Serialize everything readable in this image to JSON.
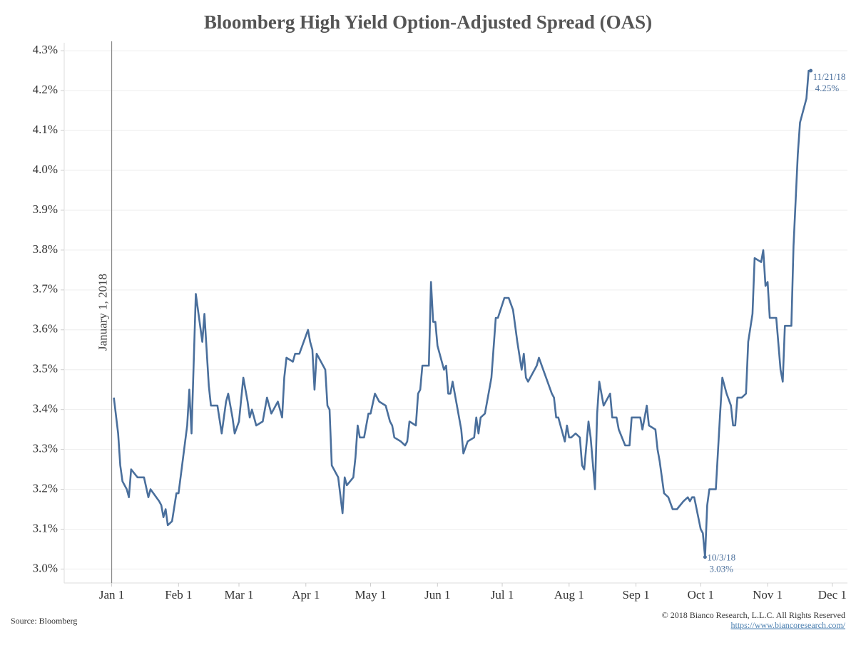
{
  "chart_data": {
    "type": "line",
    "title": "Bloomberg High Yield Option-Adjusted Spread (OAS)",
    "color": "#4a6f9c",
    "x": [
      "2018-01-02",
      "2018-01-04",
      "2018-01-05",
      "2018-01-06",
      "2018-01-08",
      "2018-01-09",
      "2018-01-10",
      "2018-01-13",
      "2018-01-16",
      "2018-01-18",
      "2018-01-19",
      "2018-01-23",
      "2018-01-24",
      "2018-01-25",
      "2018-01-26",
      "2018-01-27",
      "2018-01-29",
      "2018-01-31",
      "2018-02-01",
      "2018-02-05",
      "2018-02-06",
      "2018-02-07",
      "2018-02-09",
      "2018-02-12",
      "2018-02-13",
      "2018-02-15",
      "2018-02-16",
      "2018-02-19",
      "2018-02-21",
      "2018-02-23",
      "2018-02-24",
      "2018-02-26",
      "2018-02-27",
      "2018-03-01",
      "2018-03-03",
      "2018-03-05",
      "2018-03-06",
      "2018-03-07",
      "2018-03-09",
      "2018-03-12",
      "2018-03-14",
      "2018-03-16",
      "2018-03-19",
      "2018-03-21",
      "2018-03-22",
      "2018-03-23",
      "2018-03-26",
      "2018-03-27",
      "2018-03-29",
      "2018-04-02",
      "2018-04-03",
      "2018-04-04",
      "2018-04-05",
      "2018-04-06",
      "2018-04-10",
      "2018-04-11",
      "2018-04-12",
      "2018-04-13",
      "2018-04-16",
      "2018-04-18",
      "2018-04-19",
      "2018-04-20",
      "2018-04-23",
      "2018-04-24",
      "2018-04-25",
      "2018-04-26",
      "2018-04-28",
      "2018-04-30",
      "2018-05-01",
      "2018-05-03",
      "2018-05-05",
      "2018-05-08",
      "2018-05-10",
      "2018-05-11",
      "2018-05-12",
      "2018-05-15",
      "2018-05-17",
      "2018-05-18",
      "2018-05-19",
      "2018-05-22",
      "2018-05-23",
      "2018-05-24",
      "2018-05-25",
      "2018-05-28",
      "2018-05-29",
      "2018-05-30",
      "2018-05-31",
      "2018-06-01",
      "2018-06-04",
      "2018-06-05",
      "2018-06-06",
      "2018-06-07",
      "2018-06-08",
      "2018-06-12",
      "2018-06-13",
      "2018-06-15",
      "2018-06-18",
      "2018-06-19",
      "2018-06-20",
      "2018-06-21",
      "2018-06-23",
      "2018-06-25",
      "2018-06-26",
      "2018-06-28",
      "2018-06-29",
      "2018-07-02",
      "2018-07-04",
      "2018-07-06",
      "2018-07-08",
      "2018-07-10",
      "2018-07-11",
      "2018-07-12",
      "2018-07-13",
      "2018-07-17",
      "2018-07-18",
      "2018-07-20",
      "2018-07-24",
      "2018-07-25",
      "2018-07-26",
      "2018-07-27",
      "2018-07-30",
      "2018-07-31",
      "2018-08-01",
      "2018-08-02",
      "2018-08-04",
      "2018-08-06",
      "2018-08-07",
      "2018-08-08",
      "2018-08-10",
      "2018-08-11",
      "2018-08-13",
      "2018-08-14",
      "2018-08-15",
      "2018-08-17",
      "2018-08-20",
      "2018-08-21",
      "2018-08-23",
      "2018-08-24",
      "2018-08-27",
      "2018-08-29",
      "2018-08-30",
      "2018-09-03",
      "2018-09-04",
      "2018-09-06",
      "2018-09-07",
      "2018-09-10",
      "2018-09-11",
      "2018-09-12",
      "2018-09-14",
      "2018-09-16",
      "2018-09-18",
      "2018-09-20",
      "2018-09-23",
      "2018-09-25",
      "2018-09-26",
      "2018-09-27",
      "2018-09-28",
      "2018-10-01",
      "2018-10-02",
      "2018-10-03",
      "2018-10-04",
      "2018-10-05",
      "2018-10-08",
      "2018-10-10",
      "2018-10-11",
      "2018-10-13",
      "2018-10-15",
      "2018-10-16",
      "2018-10-17",
      "2018-10-18",
      "2018-10-20",
      "2018-10-22",
      "2018-10-23",
      "2018-10-25",
      "2018-10-26",
      "2018-10-29",
      "2018-10-30",
      "2018-10-31",
      "2018-11-01",
      "2018-11-02",
      "2018-11-05",
      "2018-11-07",
      "2018-11-08",
      "2018-11-09",
      "2018-11-12",
      "2018-11-13",
      "2018-11-15",
      "2018-11-16",
      "2018-11-19",
      "2018-11-20",
      "2018-11-21"
    ],
    "values": [
      3.43,
      3.34,
      3.26,
      3.22,
      3.2,
      3.18,
      3.25,
      3.23,
      3.23,
      3.18,
      3.2,
      3.17,
      3.16,
      3.13,
      3.15,
      3.11,
      3.12,
      3.19,
      3.19,
      3.36,
      3.45,
      3.34,
      3.69,
      3.57,
      3.64,
      3.46,
      3.41,
      3.41,
      3.34,
      3.42,
      3.44,
      3.38,
      3.34,
      3.37,
      3.48,
      3.42,
      3.38,
      3.4,
      3.36,
      3.37,
      3.43,
      3.39,
      3.42,
      3.38,
      3.48,
      3.53,
      3.52,
      3.54,
      3.54,
      3.6,
      3.57,
      3.55,
      3.45,
      3.54,
      3.5,
      3.41,
      3.4,
      3.26,
      3.23,
      3.14,
      3.23,
      3.21,
      3.23,
      3.28,
      3.36,
      3.33,
      3.33,
      3.39,
      3.39,
      3.44,
      3.42,
      3.41,
      3.37,
      3.36,
      3.33,
      3.32,
      3.31,
      3.32,
      3.37,
      3.36,
      3.44,
      3.45,
      3.51,
      3.51,
      3.72,
      3.62,
      3.62,
      3.56,
      3.5,
      3.51,
      3.44,
      3.44,
      3.47,
      3.35,
      3.29,
      3.32,
      3.33,
      3.38,
      3.34,
      3.38,
      3.39,
      3.45,
      3.48,
      3.63,
      3.63,
      3.68,
      3.68,
      3.65,
      3.57,
      3.5,
      3.54,
      3.48,
      3.47,
      3.51,
      3.53,
      3.5,
      3.44,
      3.43,
      3.38,
      3.38,
      3.32,
      3.36,
      3.33,
      3.33,
      3.34,
      3.33,
      3.26,
      3.25,
      3.37,
      3.33,
      3.2,
      3.39,
      3.47,
      3.41,
      3.44,
      3.38,
      3.38,
      3.35,
      3.31,
      3.31,
      3.38,
      3.38,
      3.35,
      3.41,
      3.36,
      3.35,
      3.3,
      3.27,
      3.19,
      3.18,
      3.15,
      3.15,
      3.17,
      3.18,
      3.17,
      3.18,
      3.18,
      3.1,
      3.09,
      3.03,
      3.16,
      3.2,
      3.2,
      3.39,
      3.48,
      3.44,
      3.41,
      3.36,
      3.36,
      3.43,
      3.43,
      3.44,
      3.57,
      3.64,
      3.78,
      3.77,
      3.8,
      3.71,
      3.72,
      3.63,
      3.63,
      3.5,
      3.47,
      3.61,
      3.61,
      3.81,
      4.04,
      4.12,
      4.18,
      4.25,
      4.25
    ],
    "xlim": [
      "2017-12-10",
      "2018-12-08"
    ],
    "xticks": [
      {
        "value": "2018-01-01",
        "label": "Jan 1"
      },
      {
        "value": "2018-02-01",
        "label": "Feb 1"
      },
      {
        "value": "2018-03-01",
        "label": "Mar 1"
      },
      {
        "value": "2018-04-01",
        "label": "Apr 1"
      },
      {
        "value": "2018-05-01",
        "label": "May 1"
      },
      {
        "value": "2018-06-01",
        "label": "Jun 1"
      },
      {
        "value": "2018-07-01",
        "label": "Jul 1"
      },
      {
        "value": "2018-08-01",
        "label": "Aug 1"
      },
      {
        "value": "2018-09-01",
        "label": "Sep 1"
      },
      {
        "value": "2018-10-01",
        "label": "Oct 1"
      },
      {
        "value": "2018-11-01",
        "label": "Nov 1"
      },
      {
        "value": "2018-12-01",
        "label": "Dec 1"
      }
    ],
    "ylim": [
      2.965,
      4.32
    ],
    "yticks": [
      {
        "value": 3.0,
        "label": "3.0%"
      },
      {
        "value": 3.1,
        "label": "3.1%"
      },
      {
        "value": 3.2,
        "label": "3.2%"
      },
      {
        "value": 3.3,
        "label": "3.3%"
      },
      {
        "value": 3.4,
        "label": "3.4%"
      },
      {
        "value": 3.5,
        "label": "3.5%"
      },
      {
        "value": 3.6,
        "label": "3.6%"
      },
      {
        "value": 3.7,
        "label": "3.7%"
      },
      {
        "value": 3.8,
        "label": "3.8%"
      },
      {
        "value": 3.9,
        "label": "3.9%"
      },
      {
        "value": 4.0,
        "label": "4.0%"
      },
      {
        "value": 4.1,
        "label": "4.1%"
      },
      {
        "value": 4.2,
        "label": "4.2%"
      },
      {
        "value": 4.3,
        "label": "4.3%"
      }
    ],
    "grid": true,
    "reference_line": {
      "x": "2018-01-01",
      "label": "January 1, 2018"
    },
    "annotations": [
      {
        "x": "2018-10-03",
        "y": 3.03,
        "date_label": "10/3/18",
        "value_label": "3.03%"
      },
      {
        "x": "2018-11-21",
        "y": 4.25,
        "date_label": "11/21/18",
        "value_label": "4.25%"
      }
    ],
    "source": "Source: Bloomberg",
    "copyright": "© 2018 Bianco Research, L.L.C. All Rights Reserved",
    "url": "https://www.biancoresearch.com/"
  }
}
